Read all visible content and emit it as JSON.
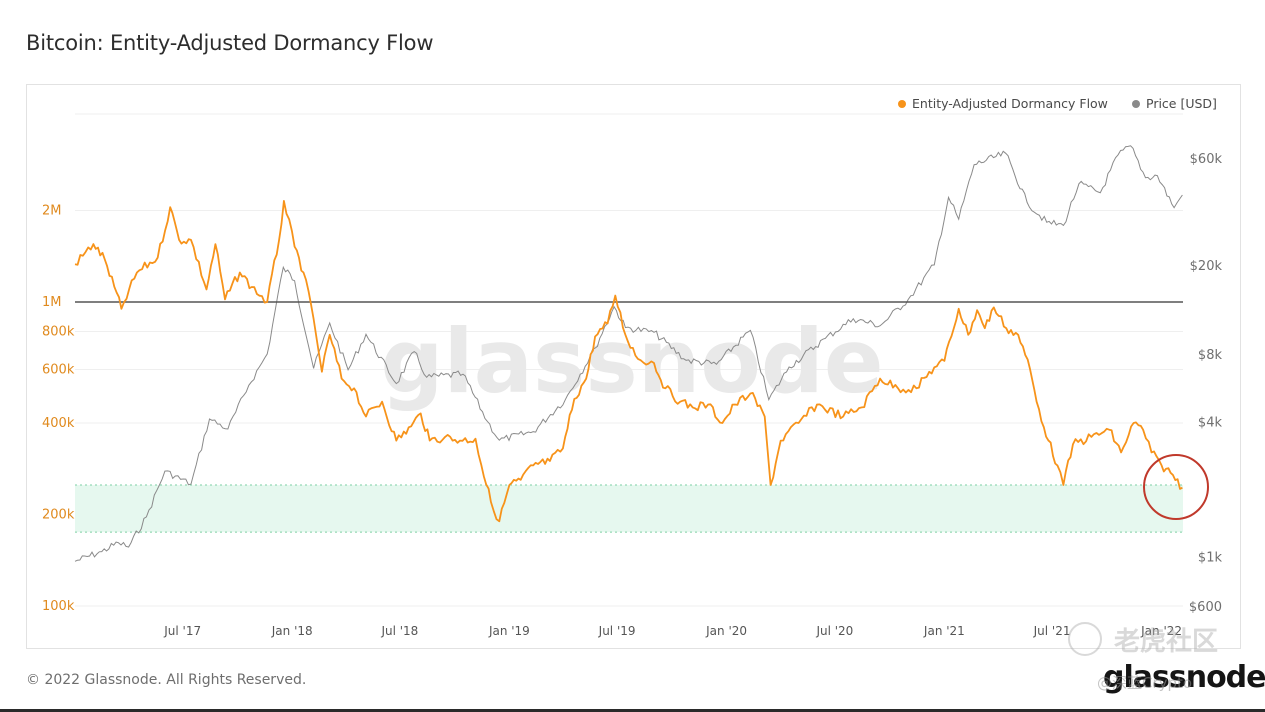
{
  "title": "Bitcoin: Entity-Adjusted Dormancy Flow",
  "footer": "© 2022 Glassnode. All Rights Reserved.",
  "brand": "glassnode",
  "watermark": "glassnode",
  "overlay_watermark": {
    "text": "老虎社区",
    "handle": "@深蓝Crypto"
  },
  "colors": {
    "dormancy": "#f7931a",
    "price": "#8a8a8a",
    "band": "#e6f8ef",
    "band_edge": "#7ed0a4",
    "threshold": "#555555",
    "highlight": "#c0392b",
    "grid": "#efefef"
  },
  "chart_data": {
    "type": "line",
    "series": [
      {
        "name": "Entity-Adjusted Dormancy Flow",
        "axis": "left",
        "color": "#f7931a",
        "points": [
          [
            "2017-01-01",
            1330000
          ],
          [
            "2017-02-01",
            1550000
          ],
          [
            "2017-02-20",
            1380000
          ],
          [
            "2017-03-20",
            950000
          ],
          [
            "2017-04-15",
            1250000
          ],
          [
            "2017-05-20",
            1400000
          ],
          [
            "2017-06-10",
            2050000
          ],
          [
            "2017-06-25",
            1600000
          ],
          [
            "2017-07-15",
            1600000
          ],
          [
            "2017-08-10",
            1100000
          ],
          [
            "2017-08-25",
            1550000
          ],
          [
            "2017-09-10",
            1020000
          ],
          [
            "2017-10-05",
            1250000
          ],
          [
            "2017-10-25",
            1120000
          ],
          [
            "2017-11-20",
            1000000
          ],
          [
            "2017-12-10",
            1600000
          ],
          [
            "2017-12-18",
            2150000
          ],
          [
            "2018-01-05",
            1520000
          ],
          [
            "2018-01-20",
            1250000
          ],
          [
            "2018-02-06",
            880000
          ],
          [
            "2018-02-20",
            590000
          ],
          [
            "2018-03-05",
            780000
          ],
          [
            "2018-03-25",
            560000
          ],
          [
            "2018-04-15",
            520000
          ],
          [
            "2018-05-05",
            420000
          ],
          [
            "2018-06-01",
            470000
          ],
          [
            "2018-06-25",
            350000
          ],
          [
            "2018-07-20",
            390000
          ],
          [
            "2018-08-05",
            430000
          ],
          [
            "2018-08-20",
            350000
          ],
          [
            "2018-09-15",
            360000
          ],
          [
            "2018-10-10",
            350000
          ],
          [
            "2018-11-05",
            355000
          ],
          [
            "2018-11-15",
            290000
          ],
          [
            "2018-12-01",
            220000
          ],
          [
            "2018-12-15",
            190000
          ],
          [
            "2019-01-01",
            250000
          ],
          [
            "2019-01-20",
            260000
          ],
          [
            "2019-02-10",
            290000
          ],
          [
            "2019-03-10",
            300000
          ],
          [
            "2019-04-01",
            330000
          ],
          [
            "2019-04-20",
            480000
          ],
          [
            "2019-05-10",
            560000
          ],
          [
            "2019-05-25",
            770000
          ],
          [
            "2019-06-15",
            850000
          ],
          [
            "2019-06-28",
            1050000
          ],
          [
            "2019-07-15",
            780000
          ],
          [
            "2019-08-05",
            650000
          ],
          [
            "2019-09-01",
            630000
          ],
          [
            "2019-09-20",
            520000
          ],
          [
            "2019-10-15",
            470000
          ],
          [
            "2019-11-05",
            450000
          ],
          [
            "2019-12-01",
            460000
          ],
          [
            "2019-12-25",
            400000
          ],
          [
            "2020-01-15",
            460000
          ],
          [
            "2020-02-10",
            500000
          ],
          [
            "2020-03-05",
            420000
          ],
          [
            "2020-03-15",
            250000
          ],
          [
            "2020-04-01",
            350000
          ],
          [
            "2020-05-01",
            400000
          ],
          [
            "2020-06-01",
            460000
          ],
          [
            "2020-07-15",
            420000
          ],
          [
            "2020-08-15",
            450000
          ],
          [
            "2020-09-15",
            560000
          ],
          [
            "2020-10-15",
            520000
          ],
          [
            "2020-11-15",
            520000
          ],
          [
            "2020-12-15",
            610000
          ],
          [
            "2021-01-01",
            640000
          ],
          [
            "2021-01-25",
            950000
          ],
          [
            "2021-02-10",
            780000
          ],
          [
            "2021-02-25",
            940000
          ],
          [
            "2021-03-10",
            820000
          ],
          [
            "2021-03-25",
            960000
          ],
          [
            "2021-04-15",
            820000
          ],
          [
            "2021-05-05",
            780000
          ],
          [
            "2021-05-25",
            600000
          ],
          [
            "2021-06-05",
            470000
          ],
          [
            "2021-06-25",
            350000
          ],
          [
            "2021-07-10",
            290000
          ],
          [
            "2021-07-20",
            250000
          ],
          [
            "2021-08-05",
            340000
          ],
          [
            "2021-09-05",
            360000
          ],
          [
            "2021-10-05",
            380000
          ],
          [
            "2021-10-25",
            320000
          ],
          [
            "2021-11-15",
            400000
          ],
          [
            "2021-12-01",
            380000
          ],
          [
            "2021-12-15",
            320000
          ],
          [
            "2022-01-01",
            290000
          ],
          [
            "2022-01-20",
            270000
          ],
          [
            "2022-02-05",
            245000
          ]
        ]
      },
      {
        "name": "Price [USD]",
        "axis": "right",
        "color": "#8a8a8a",
        "points": [
          [
            "2017-01-01",
            950
          ],
          [
            "2017-02-15",
            1050
          ],
          [
            "2017-03-15",
            1150
          ],
          [
            "2017-04-01",
            1100
          ],
          [
            "2017-05-01",
            1500
          ],
          [
            "2017-06-01",
            2400
          ],
          [
            "2017-07-15",
            2100
          ],
          [
            "2017-08-15",
            4100
          ],
          [
            "2017-09-15",
            3700
          ],
          [
            "2017-10-20",
            5800
          ],
          [
            "2017-11-20",
            8000
          ],
          [
            "2017-12-17",
            19500
          ],
          [
            "2018-01-05",
            17000
          ],
          [
            "2018-02-06",
            6900
          ],
          [
            "2018-03-05",
            11000
          ],
          [
            "2018-04-05",
            6800
          ],
          [
            "2018-05-05",
            9800
          ],
          [
            "2018-06-25",
            5900
          ],
          [
            "2018-07-25",
            8200
          ],
          [
            "2018-08-15",
            6300
          ],
          [
            "2018-10-15",
            6500
          ],
          [
            "2018-11-25",
            4000
          ],
          [
            "2018-12-15",
            3300
          ],
          [
            "2019-02-10",
            3600
          ],
          [
            "2019-04-05",
            5000
          ],
          [
            "2019-05-25",
            8500
          ],
          [
            "2019-06-26",
            13000
          ],
          [
            "2019-07-15",
            10500
          ],
          [
            "2019-09-01",
            10000
          ],
          [
            "2019-10-25",
            7500
          ],
          [
            "2019-12-15",
            7200
          ],
          [
            "2020-02-10",
            10200
          ],
          [
            "2020-03-12",
            5000
          ],
          [
            "2020-04-15",
            7000
          ],
          [
            "2020-06-15",
            9400
          ],
          [
            "2020-08-01",
            11500
          ],
          [
            "2020-09-15",
            10700
          ],
          [
            "2020-11-01",
            14000
          ],
          [
            "2020-12-15",
            20000
          ],
          [
            "2021-01-08",
            40000
          ],
          [
            "2021-01-25",
            32000
          ],
          [
            "2021-02-20",
            56000
          ],
          [
            "2021-04-14",
            63000
          ],
          [
            "2021-05-20",
            38000
          ],
          [
            "2021-06-22",
            31000
          ],
          [
            "2021-07-20",
            30000
          ],
          [
            "2021-08-15",
            46000
          ],
          [
            "2021-09-20",
            42000
          ],
          [
            "2021-10-20",
            62000
          ],
          [
            "2021-11-10",
            68000
          ],
          [
            "2021-12-05",
            49000
          ],
          [
            "2021-12-25",
            50000
          ],
          [
            "2022-01-22",
            36000
          ],
          [
            "2022-02-05",
            41000
          ]
        ]
      }
    ],
    "threshold": {
      "value": 1000000,
      "axis": "left"
    },
    "band": {
      "lower": 175000,
      "upper": 250000,
      "axis": "left"
    },
    "x_ticks": [
      "Jul '17",
      "Jan '18",
      "Jul '18",
      "Jan '19",
      "Jul '19",
      "Jan '20",
      "Jul '20",
      "Jan '21",
      "Jul '21",
      "Jan '22"
    ],
    "left_axis": {
      "scale": "log",
      "ticks": [
        [
          "2M",
          2000000
        ],
        [
          "1M",
          1000000
        ],
        [
          "800k",
          800000
        ],
        [
          "600k",
          600000
        ],
        [
          "400k",
          400000
        ],
        [
          "200k",
          200000
        ],
        [
          "100k",
          100000
        ]
      ]
    },
    "right_axis": {
      "scale": "log",
      "ticks": [
        [
          "$60k",
          60000
        ],
        [
          "$20k",
          20000
        ],
        [
          "$8k",
          8000
        ],
        [
          "$4k",
          4000
        ],
        [
          "$1k",
          1000
        ],
        [
          "$600",
          600
        ]
      ]
    },
    "legend": {
      "position": "top-right",
      "items": [
        {
          "label": "Entity-Adjusted Dormancy Flow",
          "color": "#f7931a"
        },
        {
          "label": "Price [USD]",
          "color": "#8a8a8a"
        }
      ]
    },
    "grid": true,
    "annotation": "red circle around latest dormancy flow value"
  }
}
